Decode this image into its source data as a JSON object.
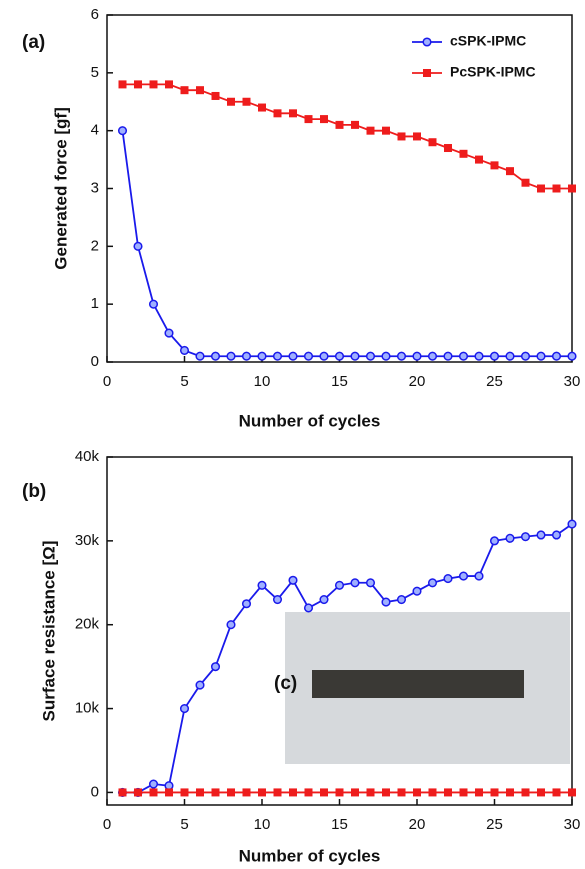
{
  "chart_data": [
    {
      "type": "line",
      "annotation": "(a)",
      "xlabel": "Number of cycles",
      "ylabel": "Generated force [gf]",
      "x": [
        1,
        2,
        3,
        4,
        5,
        6,
        7,
        8,
        9,
        10,
        11,
        12,
        13,
        14,
        15,
        16,
        17,
        18,
        19,
        20,
        21,
        22,
        23,
        24,
        25,
        26,
        27,
        28,
        29,
        30
      ],
      "series": [
        {
          "name": "cSPK-IPMC",
          "color": "#1a1aeb",
          "marker": "circle",
          "values": [
            4,
            2,
            1,
            0.5,
            0.2,
            0.1,
            0.1,
            0.1,
            0.1,
            0.1,
            0.1,
            0.1,
            0.1,
            0.1,
            0.1,
            0.1,
            0.1,
            0.1,
            0.1,
            0.1,
            0.1,
            0.1,
            0.1,
            0.1,
            0.1,
            0.1,
            0.1,
            0.1,
            0.1,
            0.1
          ]
        },
        {
          "name": "PcSPK-IPMC",
          "color": "#ee1c1c",
          "marker": "square",
          "values": [
            4.8,
            4.8,
            4.8,
            4.8,
            4.7,
            4.7,
            4.6,
            4.5,
            4.5,
            4.4,
            4.3,
            4.3,
            4.2,
            4.2,
            4.1,
            4.1,
            4.0,
            4.0,
            3.9,
            3.9,
            3.8,
            3.7,
            3.6,
            3.5,
            3.4,
            3.3,
            3.1,
            3.0,
            3.0,
            3.0
          ]
        }
      ],
      "xlim": [
        0,
        30
      ],
      "xticks": [
        0,
        5,
        10,
        15,
        20,
        25,
        30
      ],
      "ylim": [
        0,
        6
      ],
      "yticks": [
        0,
        1,
        2,
        3,
        4,
        5,
        6
      ],
      "legend": "upper right"
    },
    {
      "type": "line",
      "annotation": "(b)",
      "inset_label": "(c)",
      "xlabel": "Number of cycles",
      "ylabel": "Surface resistance [Ω]",
      "x": [
        1,
        2,
        3,
        4,
        5,
        6,
        7,
        8,
        9,
        10,
        11,
        12,
        13,
        14,
        15,
        16,
        17,
        18,
        19,
        20,
        21,
        22,
        23,
        24,
        25,
        26,
        27,
        28,
        29,
        30
      ],
      "series": [
        {
          "color": "#1a1aeb",
          "marker": "circle",
          "values": [
            0,
            0,
            1000,
            800,
            10000,
            12800,
            15000,
            20000,
            22500,
            24700,
            23000,
            25300,
            22000,
            23000,
            24700,
            25000,
            25000,
            22700,
            23000,
            24000,
            25000,
            25500,
            25800,
            25800,
            30000,
            30300,
            30500,
            30700,
            30700,
            32000
          ]
        },
        {
          "color": "#ee1c1c",
          "marker": "square",
          "values": [
            0,
            0,
            0,
            0,
            0,
            0,
            0,
            0,
            0,
            0,
            0,
            0,
            0,
            0,
            0,
            0,
            0,
            0,
            0,
            0,
            0,
            0,
            0,
            0,
            0,
            0,
            0,
            0,
            0,
            0
          ]
        }
      ],
      "xlim": [
        0,
        30
      ],
      "xticks": [
        0,
        5,
        10,
        15,
        20,
        25,
        30
      ],
      "ylim": [
        -1500,
        40000
      ],
      "yticks": [
        0,
        {
          "value": 10000,
          "label": "10k"
        },
        {
          "value": 20000,
          "label": "20k"
        },
        {
          "value": 30000,
          "label": "30k"
        },
        {
          "value": 40000,
          "label": "40k"
        }
      ]
    }
  ]
}
